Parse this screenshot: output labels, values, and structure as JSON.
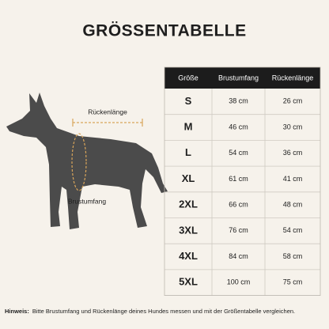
{
  "title": "GRÖSSENTABELLE",
  "illustration": {
    "back_label": "Rückenlänge",
    "chest_label": "Brustumfang"
  },
  "table": {
    "header": [
      "Größe",
      "Brustumfang",
      "Rückenlänge"
    ],
    "rows": [
      [
        "S",
        "38 cm",
        "26 cm"
      ],
      [
        "M",
        "46 cm",
        "30 cm"
      ],
      [
        "L",
        "54 cm",
        "36 cm"
      ],
      [
        "XL",
        "61 cm",
        "41 cm"
      ],
      [
        "2XL",
        "66 cm",
        "48 cm"
      ],
      [
        "3XL",
        "76 cm",
        "54 cm"
      ],
      [
        "4XL",
        "84 cm",
        "58 cm"
      ],
      [
        "5XL",
        "100 cm",
        "75 cm"
      ]
    ]
  },
  "hint": {
    "label": "Hinweis:",
    "text": "Bitte Brustumfang und Rückenlänge deines Hundes messen und mit der Größentabelle vergleichen."
  }
}
